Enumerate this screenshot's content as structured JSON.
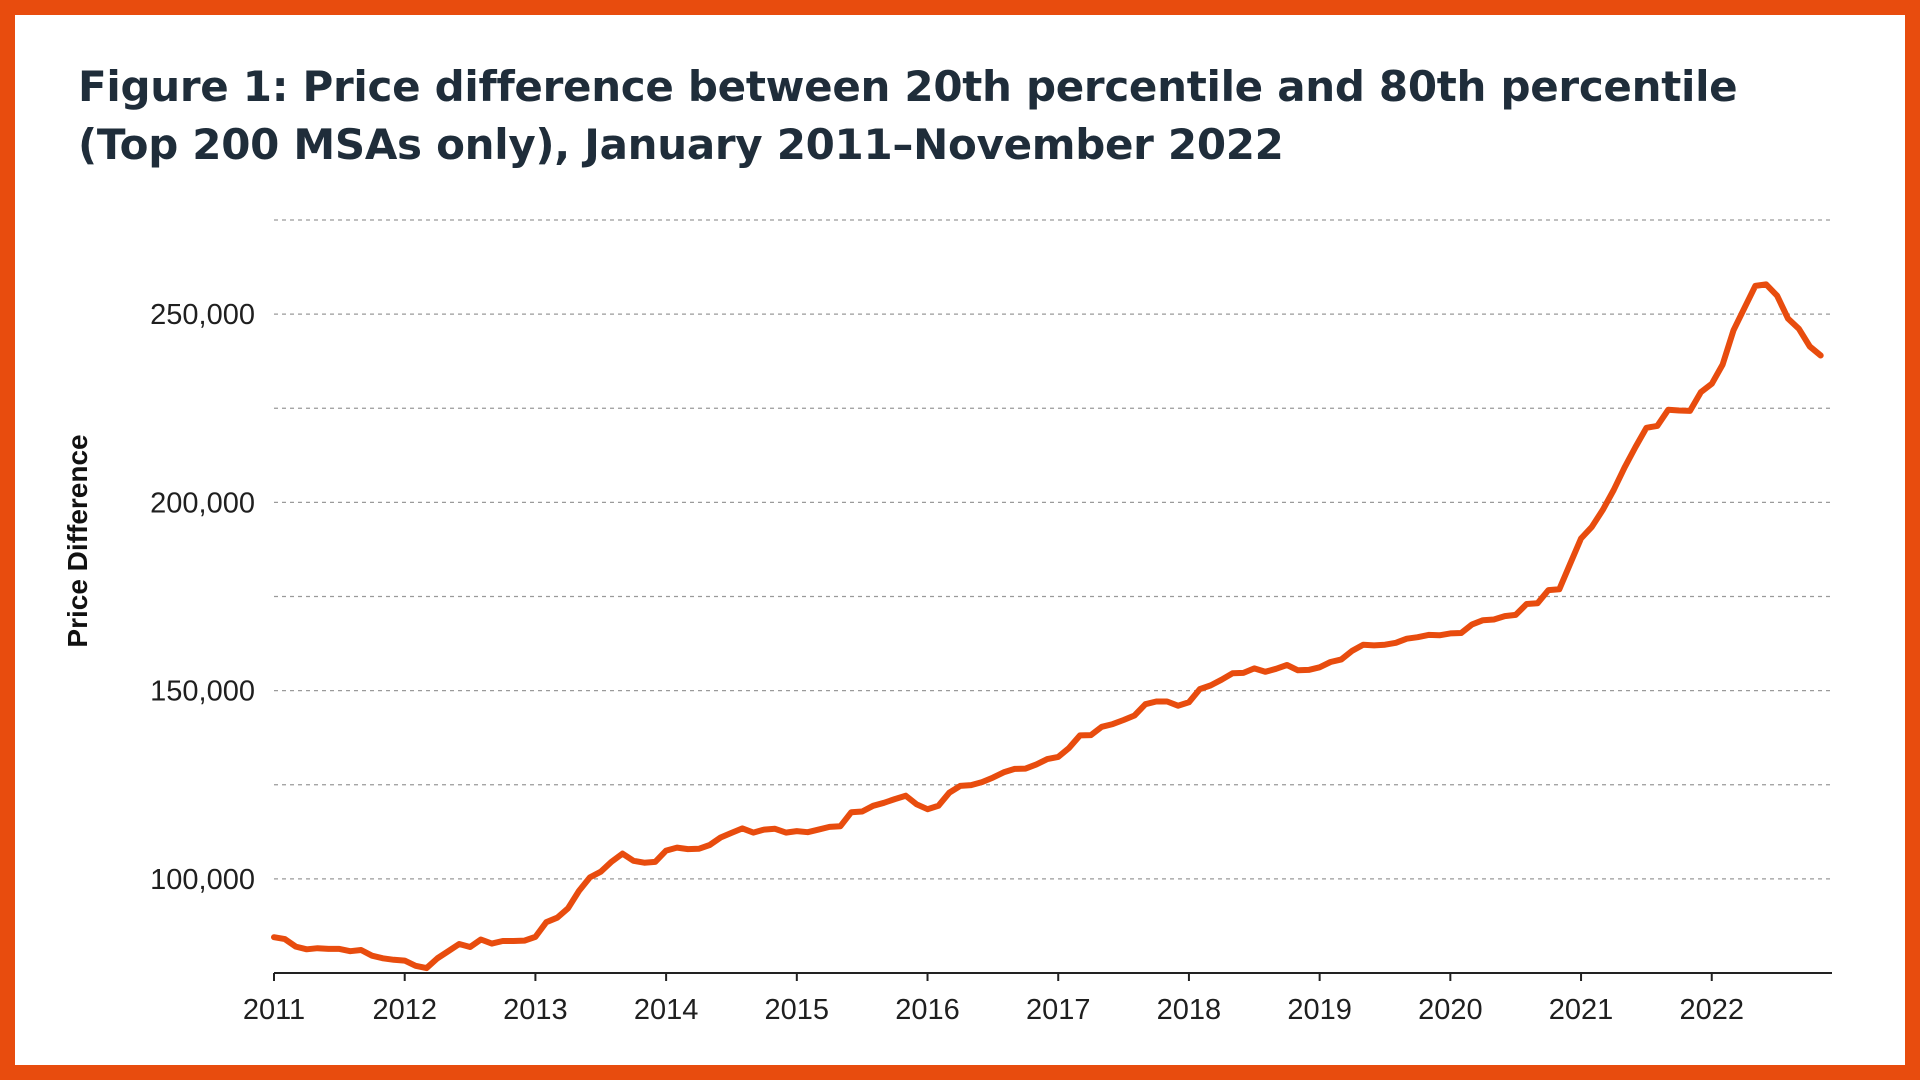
{
  "frame_color": "#e84c0e",
  "chart_data": {
    "type": "line",
    "title_lines": [
      "Figure 1: Price difference between 20th percentile and 80th percentile",
      "(Top 200 MSAs only), January 2011–November 2022"
    ],
    "ylabel": "Price Difference",
    "xlabel": "",
    "ylim": [
      75000,
      275000
    ],
    "y_ticks": [
      100000,
      150000,
      200000,
      250000
    ],
    "y_tick_labels": [
      "100,000",
      "150,000",
      "200,000",
      "250,000"
    ],
    "x_range": [
      2011,
      2022.92
    ],
    "x_ticks": [
      2011,
      2012,
      2013,
      2014,
      2015,
      2016,
      2017,
      2018,
      2019,
      2020,
      2021,
      2022
    ],
    "x_tick_labels": [
      "2011",
      "2012",
      "2013",
      "2014",
      "2015",
      "2016",
      "2017",
      "2018",
      "2019",
      "2020",
      "2021",
      "2022"
    ],
    "grid": "horizontal dashed",
    "line_color": "#e84c0e",
    "series": [
      {
        "x_start": "2011-01",
        "x_end": "2022-11",
        "frequency": "monthly",
        "values": [
          84500,
          84000,
          82000,
          81300,
          81600,
          81400,
          81400,
          80800,
          81100,
          79600,
          78900,
          78500,
          78300,
          76900,
          76300,
          78900,
          80800,
          82700,
          81900,
          83900,
          82800,
          83500,
          83500,
          83600,
          84600,
          88500,
          89700,
          92200,
          96800,
          100400,
          101900,
          104600,
          106700,
          104800,
          104300,
          104500,
          107500,
          108300,
          107900,
          108000,
          109000,
          111000,
          112200,
          113400,
          112300,
          113100,
          113300,
          112300,
          112700,
          112400,
          113100,
          113800,
          114000,
          117700,
          117900,
          119400,
          120200,
          121200,
          122100,
          119800,
          118500,
          119400,
          122900,
          124700,
          124900,
          125700,
          126900,
          128300,
          129200,
          129300,
          130400,
          131800,
          132400,
          134800,
          138100,
          138200,
          140400,
          141100,
          142200,
          143400,
          146400,
          147100,
          147100,
          146000,
          146900,
          150400,
          151400,
          152900,
          154600,
          154700,
          155900,
          155000,
          155800,
          156800,
          155400,
          155500,
          156200,
          157600,
          158300,
          160600,
          162200,
          162000,
          162200,
          162700,
          163800,
          164200,
          164800,
          164700,
          165200,
          165300,
          167600,
          168700,
          168900,
          169800,
          170100,
          173000,
          173200,
          176700,
          176900,
          183700,
          190400,
          193500,
          198000,
          203300,
          209300,
          214700,
          219800,
          220300,
          224600,
          224400,
          224300,
          229300,
          231500,
          236600,
          245700,
          251600,
          257500,
          257900,
          254900,
          248800,
          246100,
          241400,
          239000
        ]
      }
    ]
  }
}
